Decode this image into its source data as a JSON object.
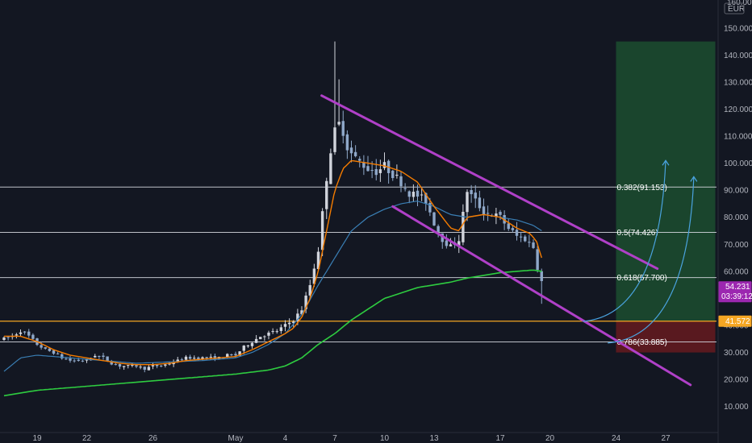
{
  "chart_data": {
    "type": "candlestick",
    "title": "",
    "currency": "EUR",
    "y_axis_top_label": "160.000",
    "ylim": [
      0,
      160
    ],
    "y_ticks": [
      {
        "value": 150,
        "label": "150.000"
      },
      {
        "value": 140,
        "label": "140.000"
      },
      {
        "value": 130,
        "label": "130.000"
      },
      {
        "value": 120,
        "label": "120.000"
      },
      {
        "value": 110,
        "label": "110.000"
      },
      {
        "value": 100,
        "label": "100.000"
      },
      {
        "value": 90,
        "label": "90.000"
      },
      {
        "value": 80,
        "label": "80.000"
      },
      {
        "value": 70,
        "label": "70.000"
      },
      {
        "value": 60,
        "label": "60.000"
      },
      {
        "value": 50,
        "label": "50.000"
      },
      {
        "value": 40,
        "label": "40.000"
      },
      {
        "value": 30,
        "label": "30.000"
      },
      {
        "value": 20,
        "label": "20.000"
      },
      {
        "value": 10,
        "label": "10.000"
      }
    ],
    "x_ticks": [
      {
        "day": 0,
        "label": "19"
      },
      {
        "day": 3,
        "label": "22"
      },
      {
        "day": 7,
        "label": "26"
      },
      {
        "day": 12,
        "label": "May"
      },
      {
        "day": 15,
        "label": "4"
      },
      {
        "day": 18,
        "label": "7"
      },
      {
        "day": 21,
        "label": "10"
      },
      {
        "day": 24,
        "label": "13"
      },
      {
        "day": 28,
        "label": "17"
      },
      {
        "day": 31,
        "label": "20"
      },
      {
        "day": 35,
        "label": "24"
      },
      {
        "day": 38,
        "label": "27"
      }
    ],
    "xlim_days": [
      -2,
      41
    ],
    "ohlc_keypoints": [
      [
        -2,
        35
      ],
      [
        -1.5,
        36
      ],
      [
        -1,
        38
      ],
      [
        -0.5,
        36
      ],
      [
        0,
        33
      ],
      [
        0.5,
        31
      ],
      [
        1,
        30
      ],
      [
        1.5,
        28
      ],
      [
        2,
        27
      ],
      [
        2.5,
        27
      ],
      [
        3,
        27
      ],
      [
        3.5,
        29
      ],
      [
        4,
        28
      ],
      [
        4.5,
        26
      ],
      [
        5,
        25
      ],
      [
        5.5,
        25
      ],
      [
        6,
        25
      ],
      [
        6.5,
        24
      ],
      [
        7,
        25
      ],
      [
        7.5,
        25
      ],
      [
        8,
        26
      ],
      [
        8.5,
        27
      ],
      [
        9,
        28
      ],
      [
        9.5,
        28
      ],
      [
        10,
        28
      ],
      [
        10.5,
        28
      ],
      [
        11,
        28
      ],
      [
        11.5,
        29
      ],
      [
        12,
        29
      ],
      [
        12.5,
        32
      ],
      [
        13,
        34
      ],
      [
        13.5,
        36
      ],
      [
        14,
        37
      ],
      [
        14.5,
        38
      ],
      [
        15,
        40
      ],
      [
        15.5,
        42
      ],
      [
        16,
        46
      ],
      [
        16.5,
        55
      ],
      [
        17,
        68
      ],
      [
        17.3,
        84
      ],
      [
        17.6,
        100
      ],
      [
        17.9,
        110
      ],
      [
        18.2,
        115
      ],
      [
        18.5,
        112
      ],
      [
        18.8,
        105
      ],
      [
        19.2,
        102
      ],
      [
        19.6,
        100
      ],
      [
        20,
        98
      ],
      [
        20.5,
        97
      ],
      [
        21,
        99
      ],
      [
        21.5,
        96
      ],
      [
        22,
        93
      ],
      [
        22.5,
        89
      ],
      [
        23,
        88
      ],
      [
        23.5,
        86
      ],
      [
        24,
        78
      ],
      [
        24.5,
        72
      ],
      [
        25,
        69
      ],
      [
        25.5,
        72
      ],
      [
        26,
        90
      ],
      [
        26.5,
        86
      ],
      [
        27,
        82
      ],
      [
        27.5,
        81
      ],
      [
        28,
        80
      ],
      [
        28.5,
        76
      ],
      [
        29,
        73
      ],
      [
        29.5,
        72
      ],
      [
        30,
        69
      ],
      [
        30.3,
        60
      ],
      [
        30.6,
        54.2
      ]
    ],
    "ma_fast_keypoints": [
      [
        -2,
        36
      ],
      [
        -1,
        36
      ],
      [
        0,
        34
      ],
      [
        1,
        31
      ],
      [
        2,
        29
      ],
      [
        3,
        28
      ],
      [
        4,
        27
      ],
      [
        5,
        26
      ],
      [
        6,
        25.5
      ],
      [
        7,
        25.5
      ],
      [
        8,
        26
      ],
      [
        9,
        27
      ],
      [
        10,
        27.5
      ],
      [
        11,
        28
      ],
      [
        12,
        28.5
      ],
      [
        13,
        31
      ],
      [
        14,
        34
      ],
      [
        15,
        37
      ],
      [
        15.5,
        39
      ],
      [
        16,
        43
      ],
      [
        16.5,
        50
      ],
      [
        17,
        60
      ],
      [
        17.5,
        75
      ],
      [
        18,
        90
      ],
      [
        18.5,
        98
      ],
      [
        19,
        101
      ],
      [
        20,
        100
      ],
      [
        21,
        99
      ],
      [
        22,
        97
      ],
      [
        23,
        93
      ],
      [
        24,
        84
      ],
      [
        25,
        76
      ],
      [
        25.5,
        75
      ],
      [
        26,
        80
      ],
      [
        27,
        81
      ],
      [
        28,
        80
      ],
      [
        29,
        76
      ],
      [
        29.8,
        74
      ],
      [
        30.2,
        71
      ],
      [
        30.5,
        65
      ]
    ],
    "ma_mid_keypoints": [
      [
        -2,
        23
      ],
      [
        -1,
        28
      ],
      [
        0,
        29
      ],
      [
        2,
        28
      ],
      [
        4,
        27
      ],
      [
        6,
        26
      ],
      [
        8,
        26.5
      ],
      [
        10,
        27
      ],
      [
        12,
        28
      ],
      [
        13,
        30
      ],
      [
        14,
        33
      ],
      [
        15,
        37
      ],
      [
        16,
        44
      ],
      [
        17,
        55
      ],
      [
        18,
        65
      ],
      [
        19,
        75
      ],
      [
        20,
        80
      ],
      [
        21,
        83
      ],
      [
        22,
        85
      ],
      [
        23,
        86
      ],
      [
        24,
        84
      ],
      [
        25,
        81
      ],
      [
        26,
        80
      ],
      [
        27,
        81
      ],
      [
        28,
        80
      ],
      [
        29,
        79
      ],
      [
        30,
        77
      ],
      [
        30.5,
        75
      ]
    ],
    "ma_slow_keypoints": [
      [
        -2,
        14
      ],
      [
        0,
        16
      ],
      [
        3,
        17.5
      ],
      [
        6,
        19
      ],
      [
        9,
        20.5
      ],
      [
        12,
        22
      ],
      [
        14,
        23.5
      ],
      [
        15,
        25
      ],
      [
        16,
        28
      ],
      [
        17,
        33
      ],
      [
        18,
        37
      ],
      [
        19,
        42
      ],
      [
        20,
        46
      ],
      [
        21,
        50
      ],
      [
        22,
        52
      ],
      [
        23,
        54
      ],
      [
        24,
        55
      ],
      [
        25,
        56
      ],
      [
        26,
        57.5
      ],
      [
        27,
        58.5
      ],
      [
        28,
        59.5
      ],
      [
        29,
        60
      ],
      [
        30,
        60.5
      ],
      [
        30.5,
        60
      ]
    ],
    "fib_levels": [
      {
        "value": 91.153,
        "label": "0.382(91.153)"
      },
      {
        "value": 74.426,
        "label": "0.5(74.426)"
      },
      {
        "value": 57.7,
        "label": "0.618(57.700)"
      },
      {
        "value": 33.885,
        "label": "0.786(33.885)"
      }
    ],
    "support_line": {
      "value": 41.572,
      "label": "41.572",
      "color": "#f5a623"
    },
    "channel_upper": {
      "from": [
        17.2,
        125
      ],
      "to": [
        37.5,
        61
      ]
    },
    "channel_lower": {
      "from": [
        21.5,
        84
      ],
      "to": [
        39.5,
        18
      ]
    },
    "target_zone": {
      "from_day": 35,
      "to_day": 41,
      "top": 145,
      "bottom": 41.572,
      "color": "#1e5631"
    },
    "stop_zone": {
      "from_day": 35,
      "to_day": 41,
      "top": 41.572,
      "bottom": 30,
      "color": "#6b1a1f"
    },
    "projection_arrows": [
      {
        "from": [
          33,
          41.5
        ],
        "to": [
          38,
          101
        ]
      },
      {
        "from": [
          34.5,
          33.5
        ],
        "to": [
          39.7,
          95
        ]
      }
    ],
    "last_price": {
      "value": 54.231,
      "label": "54.231",
      "countdown": "03:39:12",
      "color": "#9c27b0"
    },
    "colors": {
      "background": "#131722",
      "up": "#d1d4dc",
      "down": "#8fa8c9",
      "fast_ma": "#f57c00",
      "mid_ma": "#3a7fb5",
      "slow_ma": "#2ecc40",
      "channel": "#b040c8",
      "fib": "#d1d4dc",
      "arrow": "#4aa3df"
    }
  }
}
